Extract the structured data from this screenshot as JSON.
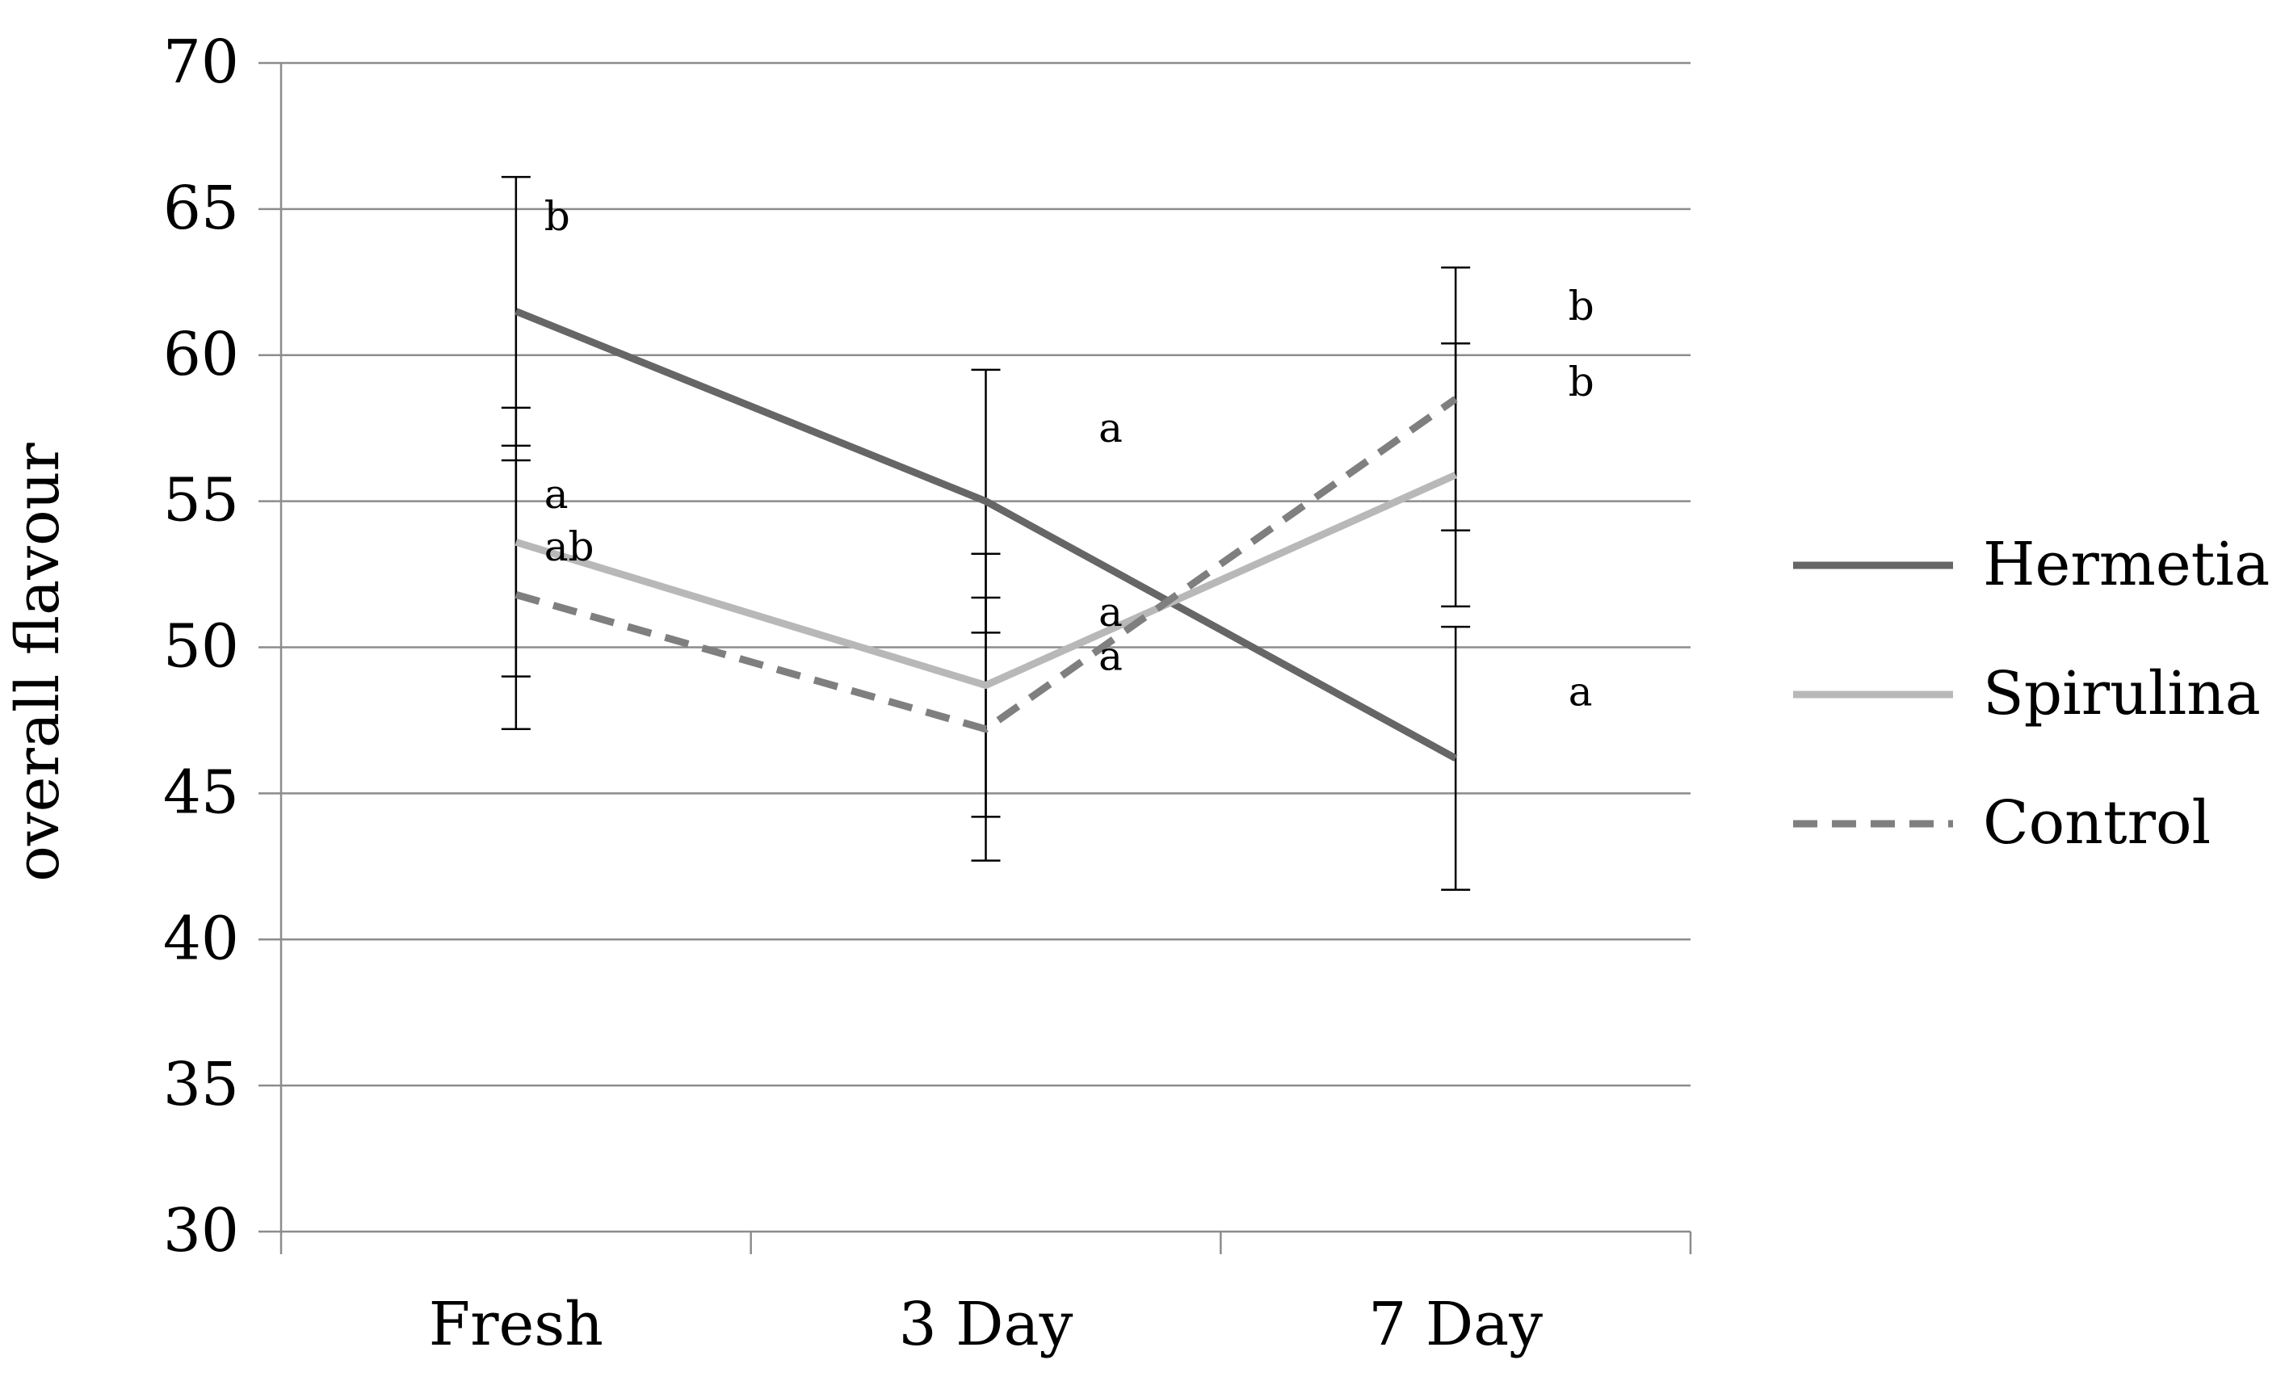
{
  "chart_data": {
    "type": "line",
    "title": "",
    "xlabel": "",
    "ylabel": "overall flavour",
    "categories": [
      "Fresh",
      "3 Day",
      "7 Day"
    ],
    "ylim": [
      30,
      70
    ],
    "ytick_step": 5,
    "grid": true,
    "legend_position": "right",
    "series": [
      {
        "name": "Hermetia",
        "values": [
          61.5,
          55.0,
          46.2
        ],
        "error": [
          4.6,
          4.5,
          4.5
        ],
        "significance": [
          "b",
          "a",
          "a"
        ],
        "color": "#666666",
        "dash": "solid"
      },
      {
        "name": "Spirulina",
        "values": [
          53.6,
          48.7,
          55.9
        ],
        "error": [
          4.6,
          4.5,
          4.5
        ],
        "significance": [
          "a",
          "a",
          "b"
        ],
        "color": "#b8b8b8",
        "dash": "solid"
      },
      {
        "name": "Control",
        "values": [
          51.8,
          47.2,
          58.5
        ],
        "error": [
          4.6,
          4.5,
          4.5
        ],
        "significance": [
          "ab",
          "a",
          "b"
        ],
        "color": "#7f7f7f",
        "dash": "dashed"
      }
    ]
  }
}
